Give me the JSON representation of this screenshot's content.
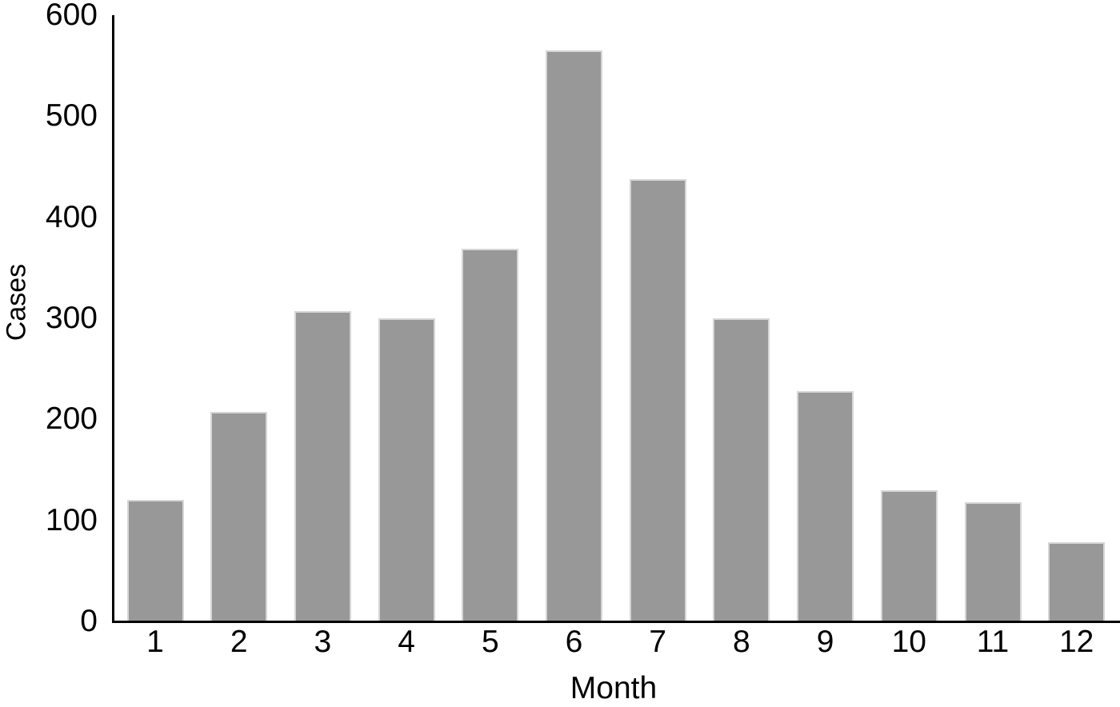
{
  "chart_data": {
    "type": "bar",
    "title": "",
    "xlabel": "Month",
    "ylabel": "Cases",
    "categories": [
      "1",
      "2",
      "3",
      "4",
      "5",
      "6",
      "7",
      "8",
      "9",
      "10",
      "11",
      "12"
    ],
    "series": [
      {
        "name": "Cases",
        "values": [
          120,
          207,
          307,
          300,
          369,
          565,
          438,
          300,
          228,
          130,
          118,
          78
        ]
      }
    ],
    "ylim": [
      0,
      600
    ],
    "yticks": [
      "0",
      "100",
      "200",
      "300",
      "400",
      "500",
      "600"
    ],
    "grid": false,
    "legend_position": "none",
    "bar_color": "#989898",
    "bar_border_color": "#d6d6d6",
    "axis_color": "#000000",
    "text_color": "#000000",
    "background_color": "#ffffff"
  }
}
